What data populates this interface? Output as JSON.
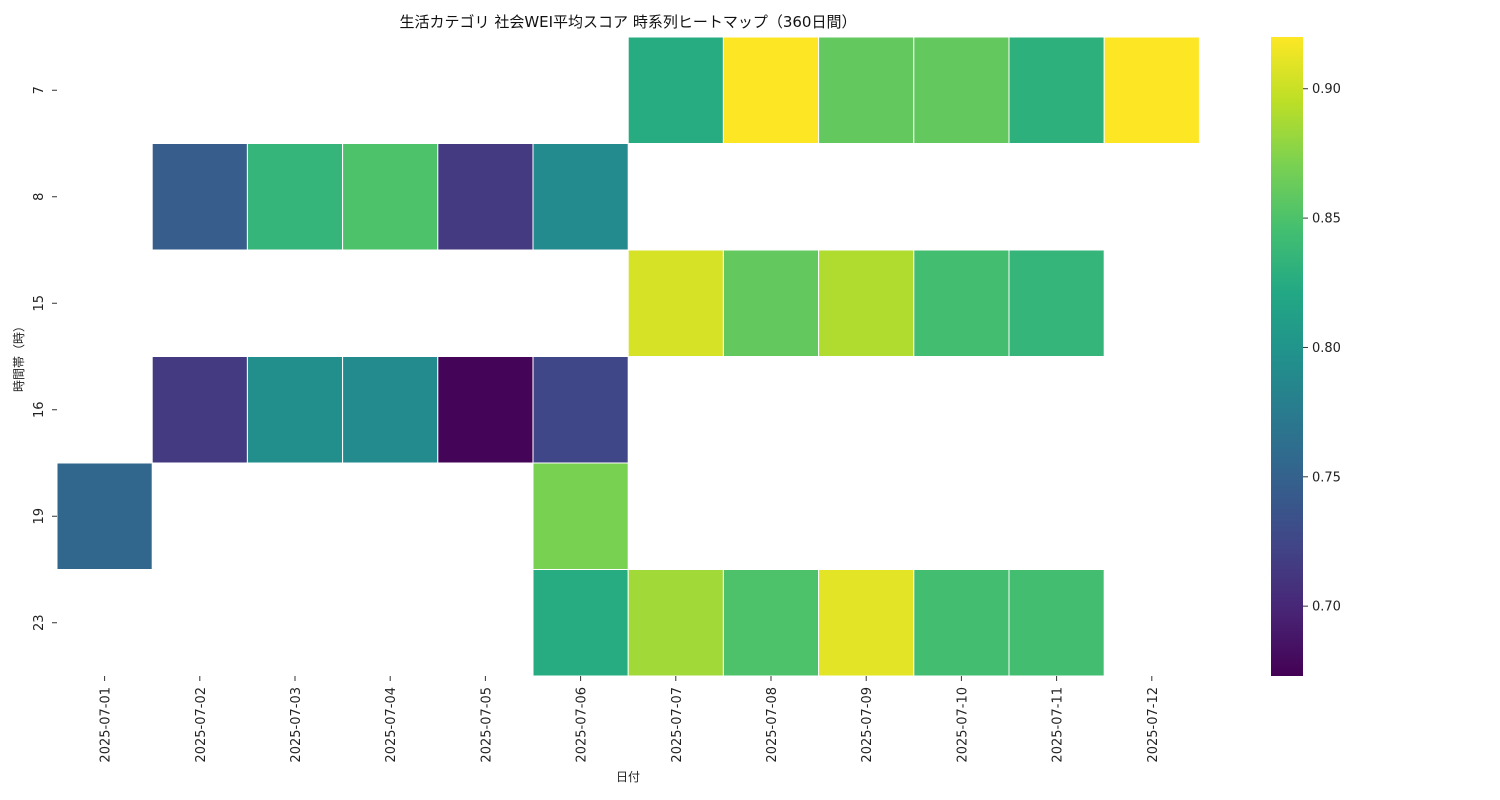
{
  "chart_data": {
    "type": "heatmap",
    "title": "生活カテゴリ 社会WEI平均スコア 時系列ヒートマップ（360日間）",
    "xlabel": "日付",
    "ylabel": "時間帯（時）",
    "x_categories": [
      "2025-07-01",
      "2025-07-02",
      "2025-07-03",
      "2025-07-04",
      "2025-07-05",
      "2025-07-06",
      "2025-07-07",
      "2025-07-08",
      "2025-07-09",
      "2025-07-10",
      "2025-07-11",
      "2025-07-12"
    ],
    "y_categories": [
      "7",
      "8",
      "15",
      "16",
      "19",
      "23"
    ],
    "values": [
      [
        null,
        null,
        null,
        null,
        null,
        null,
        0.825,
        0.92,
        0.86,
        0.86,
        0.83,
        0.92
      ],
      [
        null,
        0.745,
        0.835,
        0.85,
        0.715,
        0.79,
        null,
        null,
        null,
        null,
        null,
        null
      ],
      [
        null,
        null,
        null,
        null,
        null,
        null,
        0.905,
        0.86,
        0.89,
        0.845,
        0.835,
        null
      ],
      [
        null,
        0.715,
        0.795,
        0.79,
        0.675,
        0.725,
        null,
        null,
        null,
        null,
        null,
        null
      ],
      [
        0.755,
        null,
        null,
        null,
        null,
        0.87,
        null,
        null,
        null,
        null,
        null,
        null
      ],
      [
        null,
        null,
        null,
        null,
        null,
        0.825,
        0.885,
        0.85,
        0.91,
        0.845,
        0.845,
        null
      ]
    ],
    "colorbar": {
      "colormap": "viridis",
      "vmin": 0.673,
      "vmax": 0.92,
      "ticks": [
        "0.70",
        "0.75",
        "0.80",
        "0.85",
        "0.90"
      ]
    },
    "grid": false,
    "legend": "colorbar-right"
  }
}
